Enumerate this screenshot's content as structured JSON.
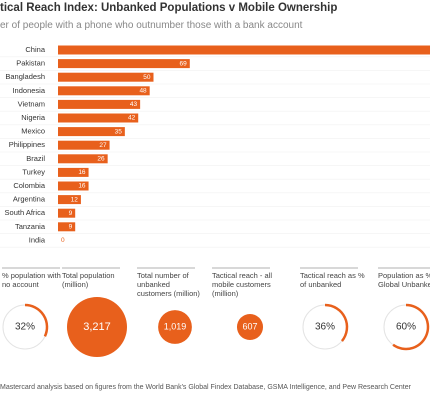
{
  "chart_data": {
    "type": "bar",
    "orientation": "horizontal",
    "title": "tical Reach Index: Unbanked Populations v Mobile Ownership",
    "subtitle": "er of people with a phone who outnumber those with a bank account",
    "categories": [
      "China",
      "Pakistan",
      "Bangladesh",
      "Indonesia",
      "Vietnam",
      "Nigeria",
      "Mexico",
      "Philippines",
      "Brazil",
      "Turkey",
      "Colombia",
      "Argentina",
      "South Africa",
      "Tanzania",
      "India"
    ],
    "values": [
      200,
      69,
      50,
      48,
      43,
      42,
      35,
      27,
      26,
      16,
      16,
      12,
      9,
      9,
      0
    ],
    "color": "#e8601c"
  },
  "stats": [
    {
      "label": "% population with no account",
      "value": {
        "value": 32,
        "label": "32%"
      },
      "shape": "ring"
    },
    {
      "label": "Total population (million)",
      "value": {
        "value": 3217,
        "label": "3,217"
      },
      "shape": "disc"
    },
    {
      "label": "Total number of unbanked customers (million)",
      "value": {
        "value": 1019,
        "label": "1,019"
      },
      "shape": "disc"
    },
    {
      "label": "Tactical reach - all mobile customers (million)",
      "value": 607,
      "shape": "disc"
    },
    {
      "label": "Tactical reach as % of unbanked",
      "value": {
        "value": 36,
        "label": "36%"
      },
      "shape": "ring"
    },
    {
      "label": "Population as % of Global Unbanked",
      "value": {
        "value": 60,
        "label": "60%"
      },
      "shape": "ring"
    }
  ],
  "footer": "Mastercard analysis based on figures from the World Bank's Global Findex Database, GSMA Intelligence, and Pew Research Center"
}
